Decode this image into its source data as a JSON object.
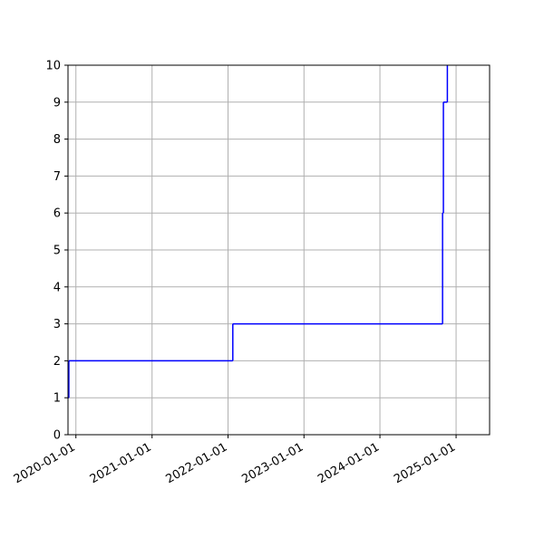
{
  "chart_data": {
    "type": "line",
    "title": "",
    "xlabel": "",
    "ylabel": "",
    "x_axis": "date",
    "xlim": [
      "2019-11-24",
      "2025-06-11"
    ],
    "ylim": [
      0,
      10
    ],
    "x_ticks": [
      "2020-01-01",
      "2021-01-01",
      "2022-01-01",
      "2023-01-01",
      "2024-01-01",
      "2025-01-01"
    ],
    "y_ticks": [
      0,
      1,
      2,
      3,
      4,
      5,
      6,
      7,
      8,
      9,
      10
    ],
    "grid": true,
    "step": "post",
    "series": [
      {
        "color": "#0000ff",
        "points": [
          {
            "x": "2019-11-24",
            "y": 1
          },
          {
            "x": "2019-11-28",
            "y": 2
          },
          {
            "x": "2022-01-24",
            "y": 3
          },
          {
            "x": "2024-10-28",
            "y": 6
          },
          {
            "x": "2024-11-01",
            "y": 9
          },
          {
            "x": "2024-11-20",
            "y": 10
          }
        ]
      }
    ]
  }
}
